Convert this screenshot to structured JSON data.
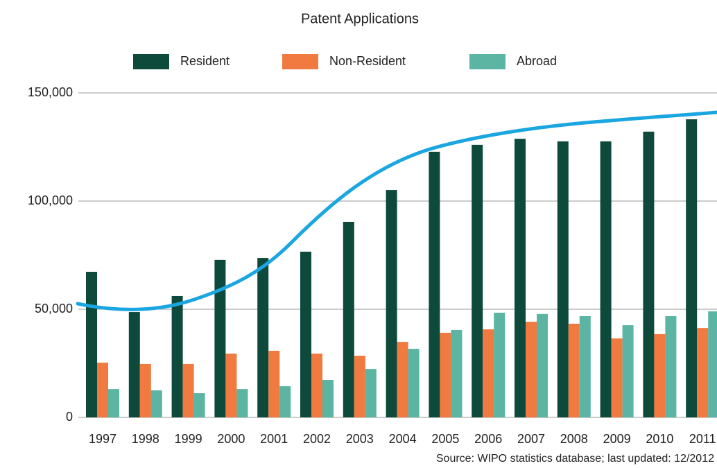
{
  "chart_data": {
    "type": "bar",
    "title": "Patent Applications",
    "categories": [
      "1997",
      "1998",
      "1999",
      "2000",
      "2001",
      "2002",
      "2003",
      "2004",
      "2005",
      "2006",
      "2007",
      "2008",
      "2009",
      "2010",
      "2011"
    ],
    "series": [
      {
        "name": "Resident",
        "color": "#0d4a3c",
        "values": [
          67300,
          48700,
          56100,
          72800,
          73700,
          76600,
          90400,
          105100,
          122800,
          126000,
          128800,
          127600,
          127600,
          132100,
          137800
        ]
      },
      {
        "name": "Non-Resident",
        "color": "#f07a3f",
        "values": [
          25300,
          24700,
          24700,
          29500,
          30800,
          29500,
          28500,
          34900,
          39100,
          40700,
          44200,
          43300,
          36500,
          38500,
          41300
        ]
      },
      {
        "name": "Abroad",
        "color": "#5bb5a2",
        "values": [
          13100,
          12500,
          11200,
          13100,
          14400,
          17300,
          22400,
          31700,
          40400,
          48400,
          47800,
          46800,
          42600,
          46800,
          49000
        ]
      }
    ],
    "ylim": [
      0,
      150000
    ],
    "yticks": [
      0,
      {
        "value": 50000,
        "label": "50,000"
      },
      {
        "value": 100000,
        "label": "100,000"
      },
      {
        "value": 150000,
        "label": "150,000"
      }
    ],
    "grid": true,
    "source": "Source: WIPO statistics database; last updated: 12/2012"
  }
}
